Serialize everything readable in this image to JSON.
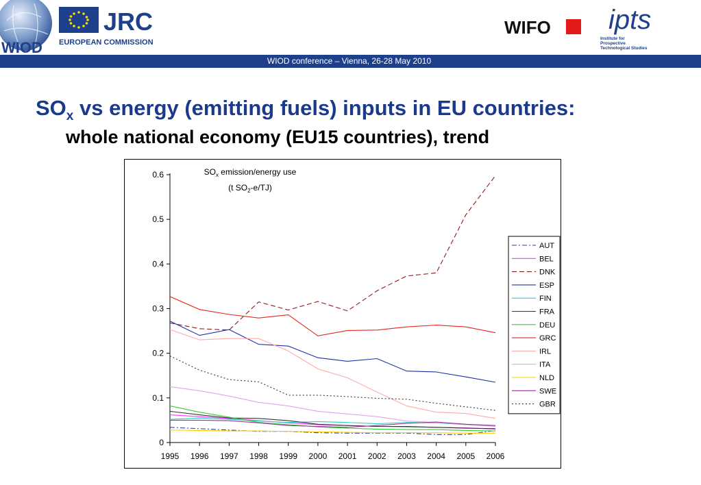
{
  "header": {
    "jrc_wordmark": "JRC",
    "jrc_caption": "EUROPEAN COMMISSION",
    "wiod_wordmark": "WIOD",
    "wifo_wordmark": "WIFO",
    "ipts_wordmark": "ipts",
    "ipts_caption": [
      "Institute for",
      "Prospective",
      "Technological Studies"
    ],
    "banner_text": "WIOD conference – Vienna, 26-28 May 2010"
  },
  "slide": {
    "title_main": "SO",
    "title_sub": "x",
    "title_rest": " vs energy (emitting fuels) inputs in EU countries:",
    "subtitle": "whole national economy (EU15 countries), trend"
  },
  "colors": {
    "banner": "#1e3f8a",
    "title": "#1b3a8c",
    "wifo_red": "#e31a1c"
  },
  "chart_data": {
    "type": "line",
    "annotation": {
      "line1_main": "SO",
      "line1_sub": "x",
      "line1_rest": " emission/energy use",
      "line2_a": "(t SO",
      "line2_sub": "2",
      "line2_b": "-e/TJ)"
    },
    "x": [
      1995,
      1996,
      1997,
      1998,
      1999,
      2000,
      2001,
      2002,
      2003,
      2004,
      2005,
      2006
    ],
    "ylim": [
      0,
      0.6
    ],
    "yticks": [
      0,
      0.1,
      0.2,
      0.3,
      0.4,
      0.5,
      0.6
    ],
    "ytick_labels": [
      "0",
      "0.1",
      "0.2",
      "0.3",
      "0.4",
      "0.5",
      "0.6"
    ],
    "legend_position": "right",
    "grid": false,
    "series": [
      {
        "name": "AUT",
        "color": "#2a3ea8",
        "dash": "dashdot",
        "values": [
          0.034,
          0.031,
          0.028,
          0.025,
          0.025,
          0.022,
          0.021,
          0.021,
          0.021,
          0.018,
          0.018,
          0.027
        ]
      },
      {
        "name": "BEL",
        "color": "#ff33ff",
        "dash": "solid",
        "values": [
          0.062,
          0.058,
          0.054,
          0.049,
          0.044,
          0.04,
          0.038,
          0.036,
          0.035,
          0.034,
          0.033,
          0.03
        ]
      },
      {
        "name": "DNK",
        "color": "#8b1a1a",
        "dash": "dashed",
        "values": [
          0.268,
          0.255,
          0.252,
          0.315,
          0.297,
          0.316,
          0.295,
          0.34,
          0.373,
          0.38,
          0.51,
          0.598
        ]
      },
      {
        "name": "ESP",
        "color": "#1f2fa6",
        "dash": "solid",
        "values": [
          0.272,
          0.24,
          0.253,
          0.22,
          0.216,
          0.19,
          0.182,
          0.188,
          0.16,
          0.158,
          0.147,
          0.135
        ]
      },
      {
        "name": "FIN",
        "color": "#33cccc",
        "dash": "solid",
        "values": [
          0.052,
          0.055,
          0.052,
          0.048,
          0.045,
          0.047,
          0.045,
          0.042,
          0.045,
          0.044,
          0.04,
          0.038
        ]
      },
      {
        "name": "FRA",
        "color": "#333333",
        "dash": "solid",
        "values": [
          0.07,
          0.062,
          0.055,
          0.054,
          0.049,
          0.041,
          0.038,
          0.036,
          0.036,
          0.034,
          0.032,
          0.031
        ]
      },
      {
        "name": "DEU",
        "color": "#33cc33",
        "dash": "solid",
        "values": [
          0.082,
          0.068,
          0.057,
          0.045,
          0.04,
          0.035,
          0.032,
          0.03,
          0.029,
          0.029,
          0.027,
          0.026
        ]
      },
      {
        "name": "GRC",
        "color": "#e8251b",
        "dash": "solid",
        "values": [
          0.327,
          0.298,
          0.287,
          0.279,
          0.286,
          0.239,
          0.251,
          0.252,
          0.259,
          0.263,
          0.259,
          0.246
        ]
      },
      {
        "name": "IRL",
        "color": "#ffaaaa",
        "dash": "solid",
        "values": [
          0.253,
          0.23,
          0.233,
          0.233,
          0.205,
          0.165,
          0.145,
          0.113,
          0.082,
          0.068,
          0.065,
          0.054
        ]
      },
      {
        "name": "ITA",
        "color": "#d7a6e8",
        "dash": "solid",
        "values": [
          0.125,
          0.116,
          0.104,
          0.09,
          0.082,
          0.07,
          0.064,
          0.058,
          0.048,
          0.045,
          0.04,
          0.036
        ]
      },
      {
        "name": "NLD",
        "color": "#ffcc00",
        "dash": "solid",
        "values": [
          0.028,
          0.027,
          0.026,
          0.026,
          0.025,
          0.024,
          0.023,
          0.022,
          0.022,
          0.022,
          0.021,
          0.021
        ]
      },
      {
        "name": "SWE",
        "color": "#993399",
        "dash": "solid",
        "values": [
          0.05,
          0.05,
          0.049,
          0.044,
          0.038,
          0.036,
          0.034,
          0.038,
          0.043,
          0.046,
          0.041,
          0.038
        ]
      },
      {
        "name": "GBR",
        "color": "#333333",
        "dash": "dotted",
        "values": [
          0.194,
          0.162,
          0.141,
          0.136,
          0.106,
          0.106,
          0.103,
          0.099,
          0.097,
          0.088,
          0.08,
          0.072
        ]
      }
    ]
  }
}
